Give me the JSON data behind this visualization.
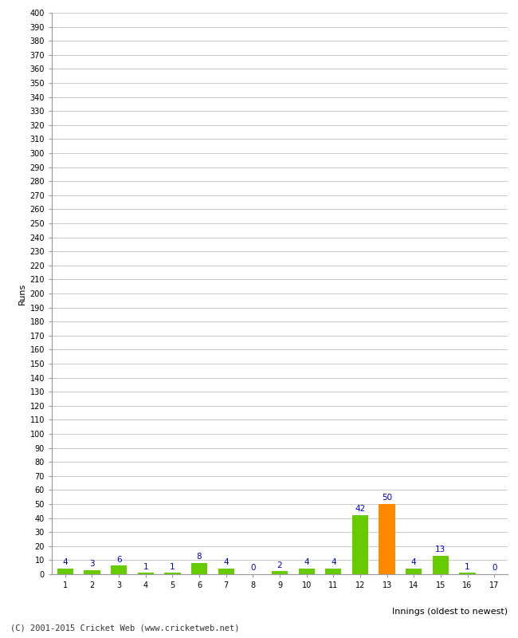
{
  "innings": [
    1,
    2,
    3,
    4,
    5,
    6,
    7,
    8,
    9,
    10,
    11,
    12,
    13,
    14,
    15,
    16,
    17
  ],
  "runs": [
    4,
    3,
    6,
    1,
    1,
    8,
    4,
    0,
    2,
    4,
    4,
    42,
    50,
    4,
    13,
    1,
    0
  ],
  "bar_colors": [
    "#66cc00",
    "#66cc00",
    "#66cc00",
    "#66cc00",
    "#66cc00",
    "#66cc00",
    "#66cc00",
    "#66cc00",
    "#66cc00",
    "#66cc00",
    "#66cc00",
    "#66cc00",
    "#ff8800",
    "#66cc00",
    "#66cc00",
    "#66cc00",
    "#66cc00"
  ],
  "xlabel": "Innings (oldest to newest)",
  "ylabel": "Runs",
  "ylim": [
    0,
    400
  ],
  "ytick_step": 10,
  "bg_color": "#ffffff",
  "grid_color": "#cccccc",
  "label_color": "#0000cc",
  "footer": "(C) 2001-2015 Cricket Web (www.cricketweb.net)"
}
